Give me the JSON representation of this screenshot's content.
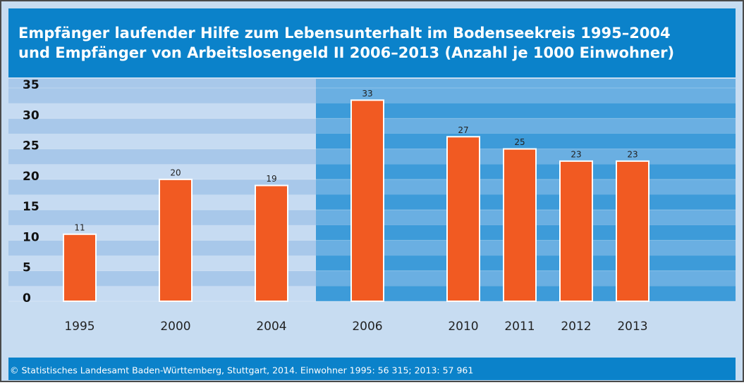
{
  "chart_data": {
    "type": "bar",
    "title": [
      "Empfänger laufender Hilfe zum Lebensunterhalt im Bodenseekreis 1995–2004",
      "und Empfänger von Arbeitslosengeld II 2006–2013 (Anzahl je 1000 Einwohner)"
    ],
    "categories": [
      "1995",
      "2000",
      "2004",
      "2006",
      "2010",
      "2011",
      "2012",
      "2013"
    ],
    "values": [
      11,
      20,
      19,
      33,
      27,
      25,
      23,
      23
    ],
    "color": "#f15a22",
    "ylim": [
      0,
      35
    ],
    "yticks": [
      0,
      5,
      10,
      15,
      20,
      25,
      30,
      35
    ],
    "grid": true,
    "source": "© Statistisches Landesamt Baden-Württemberg, Stuttgart, 2014. Einwohner 1995: 56 315; 2013: 57 961"
  }
}
